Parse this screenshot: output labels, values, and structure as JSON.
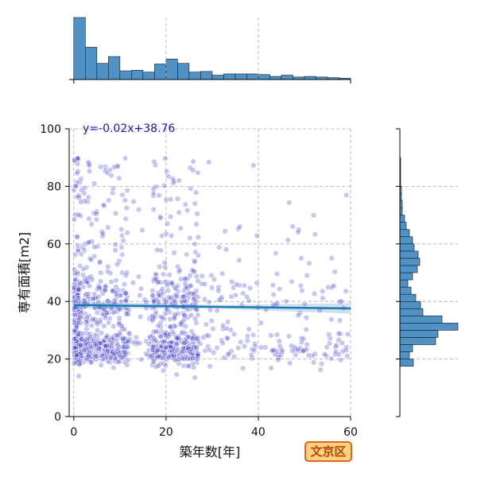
{
  "chart_data": {
    "type": "scatter",
    "title": "",
    "xlabel": "築年数[年]",
    "ylabel": "専有面積[m2]",
    "xlim": [
      -1,
      60
    ],
    "ylim": [
      0,
      100
    ],
    "xticks": [
      0,
      20,
      40,
      60
    ],
    "yticks": [
      0,
      20,
      40,
      60,
      80,
      100
    ],
    "grid": true,
    "regression": {
      "slope": -0.02,
      "intercept": 38.76,
      "label": "y=-0.02x+38.76"
    },
    "point_color": "#3a36c9",
    "line_color": "#1f77b4",
    "hist_color": "#4f93c6",
    "x_hist": {
      "bin_width": 2.5,
      "start": 0,
      "counts": [
        100,
        52,
        26,
        37,
        14,
        15,
        12,
        25,
        33,
        26,
        12,
        13,
        7,
        9,
        9,
        9,
        8,
        5,
        7,
        4,
        5,
        4,
        3,
        2
      ]
    },
    "y_hist": {
      "bin_width": 2.5,
      "start": 17.5,
      "counts": [
        17,
        12,
        16,
        45,
        48,
        73,
        53,
        29,
        26,
        20,
        14,
        10,
        16,
        22,
        25,
        23,
        18,
        16,
        12,
        8,
        6,
        3,
        3,
        2,
        2,
        1,
        1,
        1,
        1,
        0,
        0,
        0,
        0,
        0
      ]
    },
    "badge_text": "文京区"
  }
}
